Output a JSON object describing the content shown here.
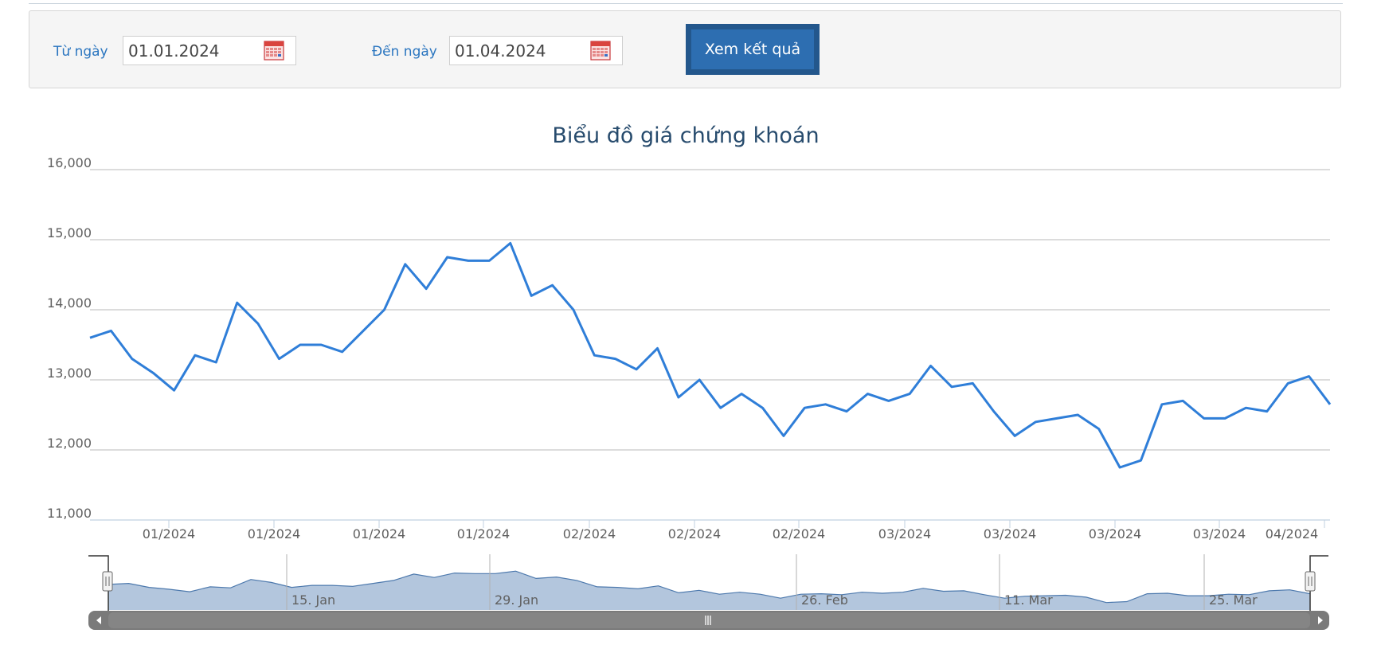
{
  "filter": {
    "from_label": "Từ ngày",
    "from_value": "01.01.2024",
    "to_label": "Đến ngày",
    "to_value": "01.04.2024",
    "submit_label": "Xem kết quả"
  },
  "chart_data": {
    "type": "line",
    "title": "Biểu đồ giá chứng khoán",
    "xlabel": "",
    "ylabel": "",
    "ylim": [
      11000,
      16000
    ],
    "yticks": [
      "11,000",
      "12,000",
      "13,000",
      "14,000",
      "15,000",
      "16,000"
    ],
    "grid": true,
    "line_color": "#2f7ed8",
    "x_tick_labels": [
      "01/2024",
      "01/2024",
      "01/2024",
      "01/2024",
      "02/2024",
      "02/2024",
      "02/2024",
      "03/2024",
      "03/2024",
      "03/2024",
      "03/2024",
      "04/2024"
    ],
    "series": [
      {
        "values": [
          13600,
          13700,
          13300,
          13100,
          12850,
          13350,
          13250,
          14100,
          13800,
          13300,
          13500,
          13500,
          13400,
          13700,
          14000,
          14650,
          14300,
          14750,
          14700,
          14700,
          14950,
          14200,
          14350,
          14000,
          13350,
          13300,
          13150,
          13450,
          12750,
          13000,
          12600,
          12800,
          12600,
          12200,
          12600,
          12650,
          12550,
          12800,
          12700,
          12800,
          13200,
          12900,
          12950,
          12550,
          12200,
          12400,
          12450,
          12500,
          12300,
          11750,
          11850,
          12650,
          12700,
          12450,
          12450,
          12600,
          12550,
          12950,
          13050,
          12650
        ]
      }
    ],
    "navigator": {
      "date_labels": [
        "15. Jan",
        "29. Jan",
        "26. Feb",
        "11. Mar",
        "25. Mar"
      ],
      "fill_color": "#b3c6dd",
      "line_color": "#4d79ad"
    }
  }
}
